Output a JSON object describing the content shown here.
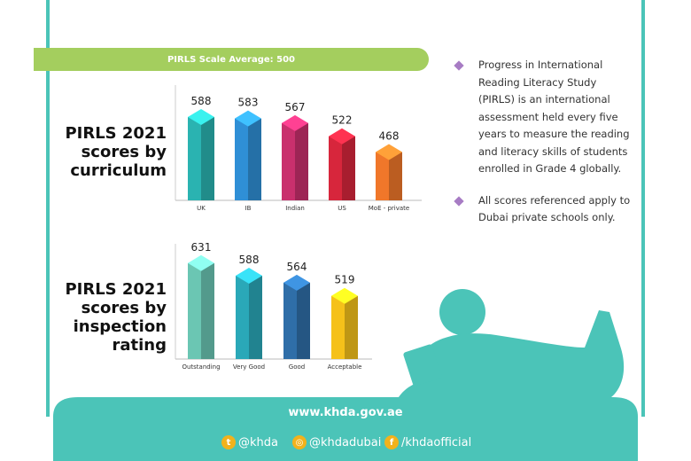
{
  "banner": "PIRLS Scale Average: 500",
  "charts": {
    "curriculum_title": "PIRLS 2021 scores by curriculum",
    "inspection_title": "PIRLS 2021 scores by inspection rating"
  },
  "chart_data": [
    {
      "type": "bar",
      "title": "PIRLS 2021 scores by curriculum",
      "categories": [
        "UK",
        "IB",
        "Indian",
        "US",
        "MoE - private"
      ],
      "values": [
        588,
        583,
        567,
        522,
        468
      ],
      "colors": [
        "#2ab3b1",
        "#2f8fd6",
        "#c9306d",
        "#d7263c",
        "#f0772a"
      ]
    },
    {
      "type": "bar",
      "title": "PIRLS 2021 scores by inspection rating",
      "categories": [
        "Outstanding",
        "Very Good",
        "Good",
        "Acceptable"
      ],
      "values": [
        631,
        588,
        564,
        519
      ],
      "colors": [
        "#6bc6b3",
        "#2aa8b8",
        "#2f6ea8",
        "#f5c11a"
      ]
    }
  ],
  "notes": [
    "Progress in International Reading Literacy Study (PIRLS) is an international assessment held every five years to measure the reading and literacy skills of students enrolled in Grade 4 globally.",
    "All scores referenced apply to Dubai private schools only."
  ],
  "footer": {
    "website": "www.khda.gov.ae",
    "twitter": "@khda",
    "instagram": "@khdadubai",
    "facebook": "/khdaofficial",
    "accent_color": "#4bc4b8",
    "icon_color": "#f2b21c"
  }
}
